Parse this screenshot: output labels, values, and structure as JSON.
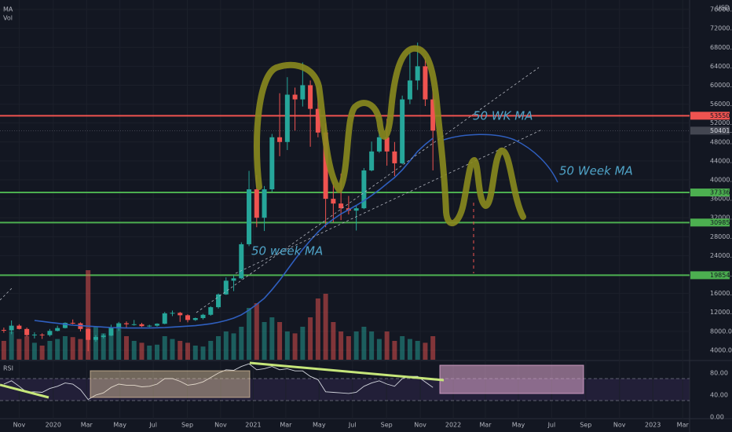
{
  "chart_data": {
    "type": "candlestick",
    "indicators": [
      "MA",
      "Vol"
    ],
    "currency": "USD",
    "rsi_title": "RSI",
    "xlim": [
      0,
      180
    ],
    "xticks": [
      {
        "value": 5,
        "label": "Nov"
      },
      {
        "value": 13.9,
        "label": "2020"
      },
      {
        "value": 22.6,
        "label": "Mar"
      },
      {
        "value": 31.3,
        "label": "May"
      },
      {
        "value": 40,
        "label": "Jul"
      },
      {
        "value": 48.9,
        "label": "Sep"
      },
      {
        "value": 57.6,
        "label": "Nov"
      },
      {
        "value": 66.1,
        "label": "2021"
      },
      {
        "value": 74.6,
        "label": "Mar"
      },
      {
        "value": 83.3,
        "label": "May"
      },
      {
        "value": 92,
        "label": "Jul"
      },
      {
        "value": 100.9,
        "label": "Sep"
      },
      {
        "value": 109.7,
        "label": "Nov"
      },
      {
        "value": 118.3,
        "label": "2022"
      },
      {
        "value": 126.7,
        "label": "Mar"
      },
      {
        "value": 135.3,
        "label": "May"
      },
      {
        "value": 144,
        "label": "Jul"
      },
      {
        "value": 152.9,
        "label": "Sep"
      },
      {
        "value": 161.7,
        "label": "Nov"
      },
      {
        "value": 170.4,
        "label": "2023"
      },
      {
        "value": 178.2,
        "label": "Mar"
      }
    ],
    "ylim": [
      2000,
      78000
    ],
    "yticks": [
      {
        "value": 4000,
        "label": "4000.0"
      },
      {
        "value": 8000,
        "label": "8000.0"
      },
      {
        "value": 12000,
        "label": "12000.0"
      },
      {
        "value": 16000,
        "label": "16000.0"
      },
      {
        "value": 20000,
        "label": "20000.0"
      },
      {
        "value": 24000,
        "label": "24000.0"
      },
      {
        "value": 28000,
        "label": "28000.0"
      },
      {
        "value": 32000,
        "label": "32000.0"
      },
      {
        "value": 36000,
        "label": "36000.0"
      },
      {
        "value": 40000,
        "label": "40000.0"
      },
      {
        "value": 44000,
        "label": "44000.0"
      },
      {
        "value": 48000,
        "label": "48000.0"
      },
      {
        "value": 52000,
        "label": "52000.0"
      },
      {
        "value": 56000,
        "label": "56000.0"
      },
      {
        "value": 60000,
        "label": "60000.0"
      },
      {
        "value": 64000,
        "label": "64000.0"
      },
      {
        "value": 68000,
        "label": "68000.0"
      },
      {
        "value": 72000,
        "label": "72000.0"
      },
      {
        "value": 76000,
        "label": "76000.0"
      }
    ],
    "grid": true,
    "up_color": "#26a69a",
    "down_color": "#ef5350",
    "candles": {
      "x": [
        1,
        3,
        5,
        7,
        9,
        11,
        13,
        15,
        17,
        19,
        21,
        23,
        25,
        27,
        29,
        31,
        33,
        35,
        37,
        39,
        41,
        43,
        45,
        47,
        49,
        51,
        53,
        55,
        57,
        59,
        61,
        63,
        65,
        67,
        69,
        71,
        73,
        75,
        77,
        79,
        81,
        83,
        85,
        87,
        89,
        91,
        93,
        95,
        97,
        99,
        101,
        103,
        105,
        107,
        109,
        111,
        113
      ],
      "open": [
        8300,
        8200,
        9200,
        8500,
        7200,
        7300,
        7200,
        8100,
        8700,
        9800,
        9700,
        8500,
        6200,
        6800,
        7100,
        8800,
        9700,
        9500,
        9500,
        9100,
        9200,
        9600,
        11800,
        11900,
        11400,
        10400,
        10800,
        11500,
        13100,
        15800,
        18700,
        19200,
        26400,
        38000,
        32000,
        38000,
        49000,
        48000,
        58000,
        57000,
        60000,
        55000,
        50000,
        36000,
        35000,
        34000,
        33500,
        34000,
        42000,
        46000,
        49000,
        46000,
        43500,
        57000,
        61000,
        64000,
        57000
      ],
      "high": [
        8800,
        10300,
        9500,
        8800,
        7800,
        7600,
        8500,
        9200,
        9900,
        10500,
        9900,
        8600,
        7200,
        7500,
        9400,
        10000,
        10100,
        10400,
        9800,
        9400,
        9700,
        12100,
        12400,
        12100,
        11600,
        10900,
        11700,
        13300,
        16000,
        19400,
        19900,
        26800,
        41900,
        41000,
        38700,
        49700,
        58300,
        61700,
        59500,
        64800,
        61000,
        59500,
        52000,
        39500,
        41300,
        36600,
        34700,
        42500,
        48100,
        50500,
        52900,
        48000,
        57800,
        67000,
        69000,
        66000,
        59200
      ],
      "low": [
        7700,
        7400,
        8400,
        6900,
        6500,
        6400,
        6900,
        8000,
        8600,
        9500,
        8000,
        3800,
        5800,
        6500,
        7000,
        8100,
        8700,
        9200,
        8900,
        8900,
        9000,
        9500,
        11200,
        10000,
        9900,
        10200,
        10500,
        11300,
        12800,
        15700,
        16500,
        19000,
        26000,
        30000,
        29200,
        37500,
        45000,
        46300,
        50400,
        55500,
        47000,
        49000,
        30000,
        31000,
        31500,
        32700,
        29300,
        33800,
        41800,
        45700,
        43000,
        40800,
        43300,
        56000,
        59000,
        55600,
        42000
      ],
      "close": [
        8200,
        9200,
        8500,
        7200,
        7300,
        7200,
        8100,
        8700,
        9800,
        9700,
        8500,
        6200,
        6800,
        7100,
        8800,
        9700,
        9500,
        9500,
        9100,
        9200,
        9600,
        11800,
        11900,
        11400,
        10400,
        10800,
        11500,
        13100,
        15800,
        18700,
        19200,
        26400,
        38000,
        32000,
        38000,
        49000,
        48000,
        58000,
        57000,
        60000,
        55000,
        50000,
        36000,
        35000,
        34000,
        33500,
        34000,
        42000,
        46000,
        49000,
        46000,
        43500,
        57000,
        61000,
        64000,
        57000,
        50400
      ],
      "volume": [
        20,
        30,
        22,
        25,
        18,
        15,
        20,
        22,
        25,
        24,
        22,
        95,
        35,
        28,
        30,
        35,
        25,
        20,
        18,
        15,
        16,
        25,
        22,
        20,
        18,
        15,
        14,
        20,
        25,
        30,
        28,
        35,
        55,
        60,
        40,
        45,
        40,
        30,
        28,
        35,
        45,
        65,
        70,
        40,
        30,
        25,
        30,
        35,
        30,
        22,
        30,
        20,
        25,
        22,
        20,
        18,
        25
      ],
      "ma": [
        null,
        null,
        null,
        null,
        10300,
        10100,
        9900,
        9700,
        9500,
        9300,
        9200,
        9100,
        9000,
        8900,
        8800,
        8750,
        8700,
        8700,
        8700,
        8700,
        8750,
        8800,
        8900,
        9000,
        9100,
        9200,
        9400,
        9600,
        9900,
        10300,
        10800,
        11500,
        12500,
        13700,
        15000,
        16800,
        18800,
        21000,
        23200,
        25300,
        27200,
        29000,
        30500,
        31700,
        32800,
        33700,
        34600,
        35600,
        36700,
        37900,
        39200,
        40500,
        42100,
        44000,
        46000,
        47500,
        48800
      ],
      "rsi": [
        60,
        66,
        56,
        45,
        46,
        45,
        52,
        56,
        62,
        60,
        50,
        32,
        40,
        44,
        54,
        60,
        58,
        58,
        55,
        56,
        60,
        70,
        70,
        65,
        58,
        60,
        64,
        72,
        80,
        86,
        85,
        92,
        97,
        86,
        88,
        92,
        86,
        88,
        84,
        84,
        74,
        68,
        46,
        45,
        44,
        43,
        45,
        56,
        62,
        66,
        60,
        56,
        70,
        74,
        74,
        64,
        54
      ]
    },
    "volume_lim": [
      0,
      100
    ],
    "ma_color": "#2f5fbf",
    "rsi_color": "#d1d4dc",
    "rsi_lim": [
      0,
      100
    ],
    "rsi_ticks": [
      {
        "value": 80,
        "label": "80.00"
      },
      {
        "value": 40,
        "label": "40.00"
      },
      {
        "value": 0,
        "label": "0.00"
      }
    ],
    "rsi_bands": [
      30,
      70
    ],
    "levels": [
      {
        "value": 53550.3,
        "label": "53550.3",
        "color": "#ef5350"
      },
      {
        "value": 37336.3,
        "label": "37336.3",
        "color": "#4caf50"
      },
      {
        "value": 30985,
        "label": "30985.0",
        "color": "#4caf50"
      },
      {
        "value": 19854,
        "label": "19854.0",
        "color": "#4caf50"
      }
    ],
    "last_price": {
      "value": 50401,
      "label": "50401.0"
    },
    "annotations": [
      "50 WK MA",
      "50 Week MA",
      "50 week MA"
    ]
  }
}
